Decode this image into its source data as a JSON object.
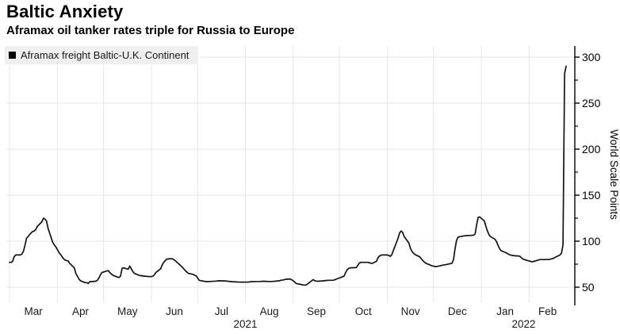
{
  "header": {
    "title": "Baltic Anxiety",
    "subtitle": "Aframax oil tanker rates triple for Russia to Europe"
  },
  "legend": {
    "label": "Aframax freight Baltic-U.K. Continent",
    "marker_color": "#000000"
  },
  "chart_data": {
    "type": "line",
    "title": "Baltic Anxiety",
    "subtitle": "Aframax oil tanker rates triple for Russia to Europe",
    "grid": true,
    "grid_color": "#e7e7e7",
    "line_color": "#141414",
    "axis_color": "#000000",
    "legend_position": "top-left",
    "x_axis": {
      "start": "2021-03-01",
      "end": "2022-02-25",
      "month_labels": [
        "Mar",
        "Apr",
        "May",
        "Jun",
        "Jul",
        "Aug",
        "Sep",
        "Oct",
        "Nov",
        "Dec",
        "Jan",
        "Feb"
      ],
      "year_labels": [
        {
          "text": "2021",
          "span_start": "2021-03-01",
          "span_end": "2022-01-01"
        },
        {
          "text": "2022",
          "span_start": "2022-01-01",
          "span_end": "2022-02-25"
        }
      ]
    },
    "y_axis": {
      "title": "World Scale Points",
      "side": "right",
      "range": [
        50,
        300
      ],
      "major_ticks": [
        50,
        100,
        150,
        200,
        250,
        300
      ],
      "minor_ticks": [
        75,
        125,
        175,
        225,
        275
      ]
    },
    "series": [
      {
        "name": "Aframax freight Baltic-U.K. Continent",
        "color": "#141414",
        "points": [
          [
            "2021-03-01",
            77
          ],
          [
            "2021-03-02",
            77
          ],
          [
            "2021-03-03",
            78
          ],
          [
            "2021-03-04",
            83
          ],
          [
            "2021-03-05",
            85
          ],
          [
            "2021-03-08",
            85
          ],
          [
            "2021-03-09",
            86
          ],
          [
            "2021-03-10",
            89
          ],
          [
            "2021-03-11",
            95
          ],
          [
            "2021-03-12",
            103
          ],
          [
            "2021-03-15",
            109
          ],
          [
            "2021-03-16",
            110.5
          ],
          [
            "2021-03-17",
            111
          ],
          [
            "2021-03-18",
            112.5
          ],
          [
            "2021-03-19",
            116
          ],
          [
            "2021-03-22",
            121
          ],
          [
            "2021-03-23",
            125
          ],
          [
            "2021-03-24",
            124
          ],
          [
            "2021-03-25",
            122
          ],
          [
            "2021-03-26",
            114
          ],
          [
            "2021-03-29",
            99
          ],
          [
            "2021-03-30",
            96
          ],
          [
            "2021-03-31",
            94
          ],
          [
            "2021-04-01",
            91
          ],
          [
            "2021-04-02",
            88
          ],
          [
            "2021-04-05",
            81
          ],
          [
            "2021-04-06",
            79.5
          ],
          [
            "2021-04-07",
            79
          ],
          [
            "2021-04-08",
            78.5
          ],
          [
            "2021-04-09",
            76
          ],
          [
            "2021-04-12",
            71
          ],
          [
            "2021-04-13",
            65
          ],
          [
            "2021-04-14",
            62
          ],
          [
            "2021-04-15",
            59
          ],
          [
            "2021-04-16",
            57
          ],
          [
            "2021-04-19",
            55
          ],
          [
            "2021-04-20",
            55
          ],
          [
            "2021-04-21",
            54
          ],
          [
            "2021-04-22",
            56
          ],
          [
            "2021-04-23",
            56
          ],
          [
            "2021-04-26",
            56.5
          ],
          [
            "2021-04-27",
            57.5
          ],
          [
            "2021-04-28",
            60
          ],
          [
            "2021-04-29",
            63.5
          ],
          [
            "2021-04-30",
            66
          ],
          [
            "2021-05-03",
            67.5
          ],
          [
            "2021-05-04",
            68
          ],
          [
            "2021-05-05",
            66
          ],
          [
            "2021-05-06",
            64.5
          ],
          [
            "2021-05-07",
            63
          ],
          [
            "2021-05-10",
            61
          ],
          [
            "2021-05-11",
            60.5
          ],
          [
            "2021-05-12",
            62
          ],
          [
            "2021-05-13",
            70.5
          ],
          [
            "2021-05-14",
            71
          ],
          [
            "2021-05-17",
            69.5
          ],
          [
            "2021-05-18",
            73
          ],
          [
            "2021-05-19",
            70
          ],
          [
            "2021-05-20",
            67
          ],
          [
            "2021-05-21",
            65
          ],
          [
            "2021-05-24",
            63
          ],
          [
            "2021-05-25",
            62.5
          ],
          [
            "2021-05-26",
            62.5
          ],
          [
            "2021-05-27",
            62
          ],
          [
            "2021-05-28",
            62
          ],
          [
            "2021-05-31",
            61.5
          ],
          [
            "2021-06-01",
            61.5
          ],
          [
            "2021-06-02",
            62
          ],
          [
            "2021-06-03",
            63.5
          ],
          [
            "2021-06-04",
            66
          ],
          [
            "2021-06-07",
            70
          ],
          [
            "2021-06-08",
            74
          ],
          [
            "2021-06-09",
            77
          ],
          [
            "2021-06-10",
            79
          ],
          [
            "2021-06-11",
            80.5
          ],
          [
            "2021-06-14",
            81
          ],
          [
            "2021-06-15",
            80.5
          ],
          [
            "2021-06-16",
            79.5
          ],
          [
            "2021-06-17",
            78
          ],
          [
            "2021-06-18",
            76.5
          ],
          [
            "2021-06-21",
            72
          ],
          [
            "2021-06-22",
            70
          ],
          [
            "2021-06-23",
            68
          ],
          [
            "2021-06-24",
            66.5
          ],
          [
            "2021-06-25",
            65
          ],
          [
            "2021-06-28",
            64
          ],
          [
            "2021-06-29",
            63
          ],
          [
            "2021-06-30",
            62.5
          ],
          [
            "2021-07-01",
            60
          ],
          [
            "2021-07-02",
            57.5
          ],
          [
            "2021-07-05",
            56.5
          ],
          [
            "2021-07-07",
            56
          ],
          [
            "2021-07-09",
            56.2
          ],
          [
            "2021-07-13",
            56.6
          ],
          [
            "2021-07-15",
            57
          ],
          [
            "2021-07-19",
            56.8
          ],
          [
            "2021-07-21",
            56.4
          ],
          [
            "2021-07-23",
            56
          ],
          [
            "2021-07-27",
            55.6
          ],
          [
            "2021-07-30",
            55.5
          ],
          [
            "2021-08-03",
            55.6
          ],
          [
            "2021-08-05",
            56
          ],
          [
            "2021-08-10",
            56.2
          ],
          [
            "2021-08-12",
            56.4
          ],
          [
            "2021-08-13",
            56.5
          ],
          [
            "2021-08-16",
            56.2
          ],
          [
            "2021-08-18",
            56.2
          ],
          [
            "2021-08-20",
            56.5
          ],
          [
            "2021-08-23",
            57
          ],
          [
            "2021-08-24",
            57.5
          ],
          [
            "2021-08-26",
            58
          ],
          [
            "2021-08-27",
            58.5
          ],
          [
            "2021-08-30",
            59
          ],
          [
            "2021-08-31",
            58
          ],
          [
            "2021-09-01",
            57
          ],
          [
            "2021-09-02",
            55.5
          ],
          [
            "2021-09-03",
            54
          ],
          [
            "2021-09-06",
            53
          ],
          [
            "2021-09-07",
            52.5
          ],
          [
            "2021-09-08",
            52.3
          ],
          [
            "2021-09-09",
            52.3
          ],
          [
            "2021-09-10",
            53
          ],
          [
            "2021-09-13",
            57
          ],
          [
            "2021-09-14",
            58.3
          ],
          [
            "2021-09-15",
            57
          ],
          [
            "2021-09-16",
            56.6
          ],
          [
            "2021-09-17",
            56.5
          ],
          [
            "2021-09-20",
            56.8
          ],
          [
            "2021-09-22",
            57.2
          ],
          [
            "2021-09-24",
            57.5
          ],
          [
            "2021-09-27",
            57.6
          ],
          [
            "2021-09-28",
            58
          ],
          [
            "2021-09-29",
            58.8
          ],
          [
            "2021-09-30",
            59.5
          ],
          [
            "2021-10-01",
            60
          ],
          [
            "2021-10-04",
            62
          ],
          [
            "2021-10-05",
            66
          ],
          [
            "2021-10-06",
            69
          ],
          [
            "2021-10-07",
            70.5
          ],
          [
            "2021-10-08",
            71
          ],
          [
            "2021-10-11",
            71.2
          ],
          [
            "2021-10-12",
            71.3
          ],
          [
            "2021-10-13",
            74
          ],
          [
            "2021-10-14",
            76.5
          ],
          [
            "2021-10-15",
            77
          ],
          [
            "2021-10-18",
            77
          ],
          [
            "2021-10-19",
            77
          ],
          [
            "2021-10-20",
            76.8
          ],
          [
            "2021-10-21",
            76.2
          ],
          [
            "2021-10-22",
            75.8
          ],
          [
            "2021-10-25",
            78
          ],
          [
            "2021-10-26",
            82
          ],
          [
            "2021-10-27",
            84
          ],
          [
            "2021-10-28",
            84.8
          ],
          [
            "2021-10-29",
            85
          ],
          [
            "2021-11-01",
            85
          ],
          [
            "2021-11-02",
            84.5
          ],
          [
            "2021-11-03",
            83.5
          ],
          [
            "2021-11-04",
            85.5
          ],
          [
            "2021-11-05",
            90
          ],
          [
            "2021-11-08",
            103
          ],
          [
            "2021-11-09",
            109
          ],
          [
            "2021-11-10",
            111
          ],
          [
            "2021-11-11",
            109.5
          ],
          [
            "2021-11-12",
            105
          ],
          [
            "2021-11-15",
            98
          ],
          [
            "2021-11-16",
            92.5
          ],
          [
            "2021-11-17",
            89
          ],
          [
            "2021-11-18",
            87
          ],
          [
            "2021-11-19",
            85.5
          ],
          [
            "2021-11-22",
            83
          ],
          [
            "2021-11-23",
            81
          ],
          [
            "2021-11-24",
            79
          ],
          [
            "2021-11-25",
            77.5
          ],
          [
            "2021-11-26",
            76
          ],
          [
            "2021-11-29",
            74
          ],
          [
            "2021-11-30",
            73.2
          ],
          [
            "2021-12-01",
            73
          ],
          [
            "2021-12-02",
            72.3
          ],
          [
            "2021-12-03",
            72.5
          ],
          [
            "2021-12-06",
            73.5
          ],
          [
            "2021-12-07",
            74
          ],
          [
            "2021-12-08",
            74.3
          ],
          [
            "2021-12-09",
            74.5
          ],
          [
            "2021-12-10",
            74.8
          ],
          [
            "2021-12-13",
            76
          ],
          [
            "2021-12-14",
            80
          ],
          [
            "2021-12-15",
            92
          ],
          [
            "2021-12-16",
            101
          ],
          [
            "2021-12-17",
            104.5
          ],
          [
            "2021-12-20",
            105.5
          ],
          [
            "2021-12-21",
            105.8
          ],
          [
            "2021-12-22",
            106
          ],
          [
            "2021-12-23",
            106
          ],
          [
            "2021-12-24",
            106.2
          ],
          [
            "2021-12-27",
            106.5
          ],
          [
            "2021-12-28",
            108
          ],
          [
            "2021-12-29",
            118
          ],
          [
            "2021-12-30",
            126
          ],
          [
            "2021-12-31",
            126.3
          ],
          [
            "2022-01-03",
            122
          ],
          [
            "2022-01-04",
            116
          ],
          [
            "2022-01-05",
            111
          ],
          [
            "2022-01-06",
            107
          ],
          [
            "2022-01-07",
            105
          ],
          [
            "2022-01-10",
            102
          ],
          [
            "2022-01-11",
            99
          ],
          [
            "2022-01-12",
            95
          ],
          [
            "2022-01-13",
            91.5
          ],
          [
            "2022-01-14",
            89.5
          ],
          [
            "2022-01-17",
            87.5
          ],
          [
            "2022-01-18",
            86.5
          ],
          [
            "2022-01-19",
            85.5
          ],
          [
            "2022-01-20",
            85
          ],
          [
            "2022-01-21",
            84.5
          ],
          [
            "2022-01-24",
            84
          ],
          [
            "2022-01-25",
            84
          ],
          [
            "2022-01-26",
            83.5
          ],
          [
            "2022-01-27",
            82
          ],
          [
            "2022-01-28",
            80.5
          ],
          [
            "2022-01-31",
            79
          ],
          [
            "2022-02-01",
            78.5
          ],
          [
            "2022-02-02",
            78
          ],
          [
            "2022-02-03",
            77.5
          ],
          [
            "2022-02-04",
            78
          ],
          [
            "2022-02-07",
            79.5
          ],
          [
            "2022-02-08",
            80
          ],
          [
            "2022-02-10",
            80
          ],
          [
            "2022-02-11",
            80
          ],
          [
            "2022-02-14",
            80.2
          ],
          [
            "2022-02-15",
            80.5
          ],
          [
            "2022-02-16",
            81
          ],
          [
            "2022-02-17",
            81.5
          ],
          [
            "2022-02-18",
            82.5
          ],
          [
            "2022-02-21",
            85
          ],
          [
            "2022-02-22",
            87
          ],
          [
            "2022-02-23",
            96
          ],
          [
            "2022-02-24",
            282
          ],
          [
            "2022-02-25",
            290
          ]
        ]
      }
    ]
  }
}
